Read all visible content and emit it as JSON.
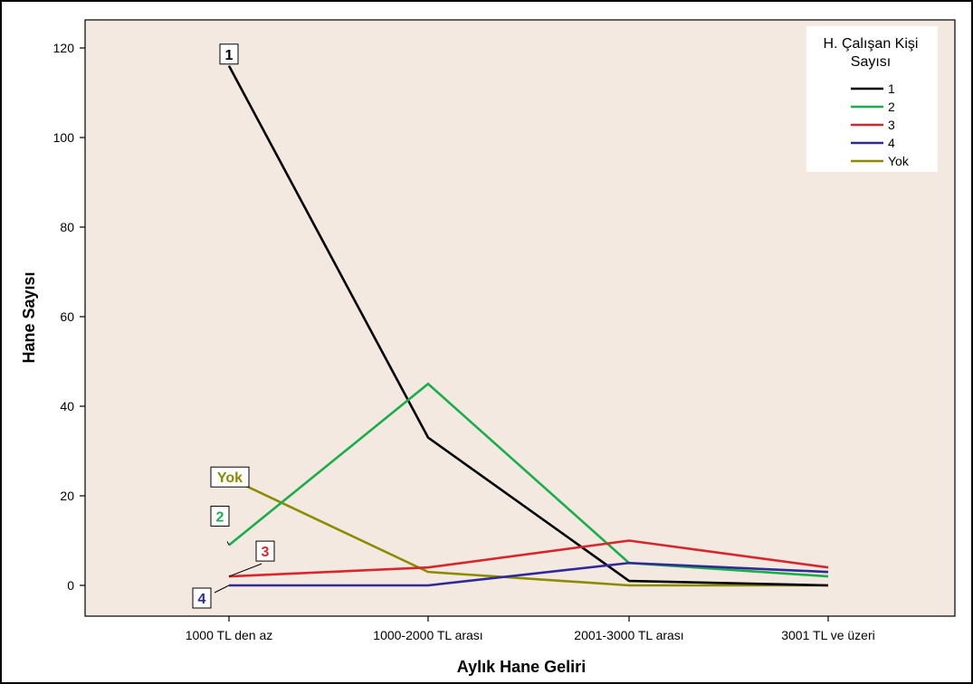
{
  "chart_data": {
    "type": "line",
    "title": "",
    "xlabel": "Aylık Hane Geliri",
    "ylabel": "Hane Sayısı",
    "categories": [
      "1000 TL den az",
      "1000-2000 TL arası",
      "2001-3000 TL arası",
      "3001 TL ve üzeri"
    ],
    "ylim": [
      -7,
      122
    ],
    "yticks": [
      0,
      20,
      40,
      60,
      80,
      100,
      120
    ],
    "grid": false,
    "background": "#f3e9e0",
    "legend": {
      "title_line1": "H. Çalışan Kişi",
      "title_line2": "Sayısı",
      "placement": "top-right"
    },
    "series": [
      {
        "name": "1",
        "color": "#000000",
        "values": [
          116,
          33,
          1,
          0
        ]
      },
      {
        "name": "2",
        "color": "#1aae4a",
        "values": [
          9,
          45,
          5,
          2
        ]
      },
      {
        "name": "3",
        "color": "#d8262d",
        "values": [
          2,
          4,
          10,
          4
        ]
      },
      {
        "name": "4",
        "color": "#2e2a98",
        "values": [
          0,
          0,
          5,
          3
        ]
      },
      {
        "name": "Yok",
        "color": "#8b8b00",
        "values": [
          24,
          3,
          0,
          0
        ]
      }
    ]
  }
}
